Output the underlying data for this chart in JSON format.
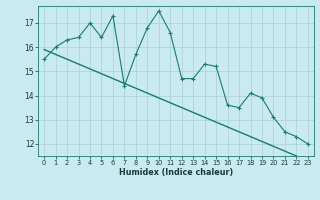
{
  "x": [
    0,
    1,
    2,
    3,
    4,
    5,
    6,
    7,
    8,
    9,
    10,
    11,
    12,
    13,
    14,
    15,
    16,
    17,
    18,
    19,
    20,
    21,
    22,
    23
  ],
  "y_jagged": [
    15.5,
    16.0,
    16.3,
    16.4,
    17.0,
    16.4,
    17.3,
    14.4,
    15.7,
    16.8,
    17.5,
    16.6,
    14.7,
    14.7,
    15.3,
    15.2,
    13.6,
    13.5,
    14.1,
    13.9,
    13.1,
    12.5,
    12.3,
    12.0
  ],
  "y_smooth": [
    15.9,
    15.7,
    15.5,
    15.3,
    15.1,
    14.9,
    14.7,
    14.5,
    14.3,
    14.1,
    13.9,
    13.7,
    13.5,
    13.3,
    13.1,
    12.9,
    12.7,
    12.5,
    12.3,
    12.1,
    11.9,
    11.7,
    11.5,
    11.3
  ],
  "line_color": "#1a7a6e",
  "bg_color": "#c8eaf0",
  "grid_color": "#b0d4da",
  "xlabel": "Humidex (Indice chaleur)",
  "ylim": [
    11.5,
    17.7
  ],
  "xlim": [
    -0.5,
    23.5
  ],
  "yticks": [
    12,
    13,
    14,
    15,
    16,
    17
  ],
  "xticks": [
    0,
    1,
    2,
    3,
    4,
    5,
    6,
    7,
    8,
    9,
    10,
    11,
    12,
    13,
    14,
    15,
    16,
    17,
    18,
    19,
    20,
    21,
    22,
    23
  ]
}
